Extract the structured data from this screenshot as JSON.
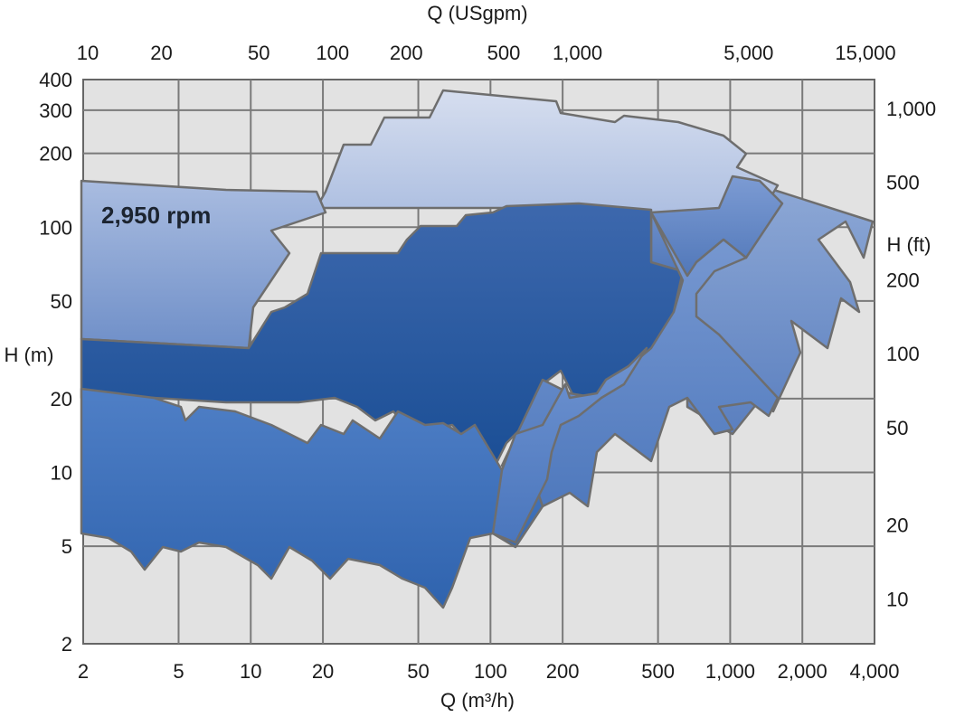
{
  "chart_data": {
    "type": "area",
    "top_axis": {
      "label": "Q (USgpm)",
      "ticks": [
        {
          "text": "10",
          "value": 10
        },
        {
          "text": "20",
          "value": 20
        },
        {
          "text": "50",
          "value": 50
        },
        {
          "text": "100",
          "value": 100
        },
        {
          "text": "200",
          "value": 200
        },
        {
          "text": "500",
          "value": 500
        },
        {
          "text": "1,000",
          "value": 1000
        },
        {
          "text": "5,000",
          "value": 5000
        },
        {
          "text": "15,000",
          "value": 15000
        }
      ]
    },
    "bottom_axis": {
      "label": "Q (m³/h)",
      "scale": "log",
      "range": [
        2,
        4000
      ],
      "ticks": [
        {
          "text": "2",
          "value": 2
        },
        {
          "text": "5",
          "value": 5
        },
        {
          "text": "10",
          "value": 10
        },
        {
          "text": "20",
          "value": 20
        },
        {
          "text": "50",
          "value": 50
        },
        {
          "text": "100",
          "value": 100
        },
        {
          "text": "200",
          "value": 200
        },
        {
          "text": "500",
          "value": 500
        },
        {
          "text": "1,000",
          "value": 1000
        },
        {
          "text": "2,000",
          "value": 2000
        },
        {
          "text": "4,000",
          "value": 4000
        }
      ]
    },
    "left_axis": {
      "label": "H (m)",
      "scale": "log",
      "range": [
        2,
        400
      ],
      "ticks": [
        {
          "text": "2",
          "value": 2
        },
        {
          "text": "5",
          "value": 5
        },
        {
          "text": "10",
          "value": 10
        },
        {
          "text": "20",
          "value": 20
        },
        {
          "text": "50",
          "value": 50
        },
        {
          "text": "100",
          "value": 100
        },
        {
          "text": "200",
          "value": 200
        },
        {
          "text": "300",
          "value": 300
        },
        {
          "text": "400",
          "value": 400
        }
      ]
    },
    "right_axis": {
      "label": "H (ft)",
      "ticks": [
        {
          "text": "1,000",
          "value": 1000
        },
        {
          "text": "500",
          "value": 500
        },
        {
          "text": "200",
          "value": 200
        },
        {
          "text": "100",
          "value": 100
        },
        {
          "text": "50",
          "value": 50
        },
        {
          "text": "20",
          "value": 20
        },
        {
          "text": "10",
          "value": 10
        }
      ]
    },
    "annotation": "2,950 rpm",
    "grid": true,
    "regions": [
      {
        "id": "region-rightmost",
        "color_top": "#8fa9d6",
        "color_bottom": "#5a7fbf",
        "points": [
          [
            840,
            205
          ],
          [
            965,
            245
          ],
          [
            955,
            285
          ],
          [
            935,
            245
          ],
          [
            905,
            265
          ],
          [
            940,
            312
          ],
          [
            950,
            345
          ],
          [
            930,
            330
          ],
          [
            915,
            385
          ],
          [
            875,
            355
          ],
          [
            885,
            390
          ],
          [
            855,
            455
          ],
          [
            842,
            440
          ],
          [
            810,
            480
          ],
          [
            760,
            450
          ],
          [
            760,
            300
          ],
          [
            820,
            195
          ]
        ]
      },
      {
        "id": "region-top-light",
        "color_top": "#d6deef",
        "color_bottom": "#9fb4dc",
        "points": [
          [
            360,
            212
          ],
          [
            380,
            160
          ],
          [
            410,
            160
          ],
          [
            425,
            130
          ],
          [
            475,
            130
          ],
          [
            490,
            100
          ],
          [
            615,
            112
          ],
          [
            620,
            125
          ],
          [
            680,
            135
          ],
          [
            690,
            128
          ],
          [
            750,
            135
          ],
          [
            800,
            150
          ],
          [
            825,
            170
          ],
          [
            815,
            185
          ],
          [
            860,
            205
          ],
          [
            845,
            230
          ],
          [
            815,
            285
          ],
          [
            700,
            285
          ],
          [
            560,
            230
          ],
          [
            350,
            230
          ]
        ]
      },
      {
        "id": "region-upper-mid",
        "color_top": "#a9bce0",
        "color_bottom": "#6f8fc8",
        "points": [
          [
            90,
            200
          ],
          [
            250,
            210
          ],
          [
            350,
            212
          ],
          [
            360,
            235
          ],
          [
            300,
            255
          ],
          [
            320,
            280
          ],
          [
            300,
            310
          ],
          [
            280,
            340
          ],
          [
            275,
            385
          ],
          [
            90,
            375
          ]
        ]
      },
      {
        "id": "region-right-step",
        "color_top": "#7c9bd3",
        "color_bottom": "#4f76b8",
        "points": [
          [
            720,
            235
          ],
          [
            795,
            230
          ],
          [
            810,
            195
          ],
          [
            840,
            200
          ],
          [
            865,
            225
          ],
          [
            825,
            285
          ],
          [
            800,
            265
          ],
          [
            770,
            290
          ],
          [
            765,
            310
          ],
          [
            745,
            305
          ],
          [
            730,
            300
          ],
          [
            720,
            290
          ]
        ]
      },
      {
        "id": "region-dark-core",
        "color_top": "#3d68ad",
        "color_bottom": "#1a4e95",
        "points": [
          [
            90,
            375
          ],
          [
            275,
            385
          ],
          [
            300,
            345
          ],
          [
            315,
            340
          ],
          [
            340,
            325
          ],
          [
            355,
            280
          ],
          [
            440,
            280
          ],
          [
            450,
            265
          ],
          [
            465,
            250
          ],
          [
            505,
            250
          ],
          [
            515,
            238
          ],
          [
            545,
            235
          ],
          [
            560,
            228
          ],
          [
            640,
            225
          ],
          [
            720,
            232
          ],
          [
            720,
            290
          ],
          [
            755,
            300
          ],
          [
            745,
            345
          ],
          [
            725,
            385
          ],
          [
            695,
            405
          ],
          [
            665,
            440
          ],
          [
            635,
            440
          ],
          [
            620,
            410
          ],
          [
            600,
            425
          ],
          [
            590,
            460
          ],
          [
            560,
            490
          ],
          [
            545,
            520
          ],
          [
            500,
            470
          ],
          [
            455,
            480
          ],
          [
            435,
            455
          ],
          [
            415,
            465
          ],
          [
            395,
            450
          ],
          [
            370,
            440
          ],
          [
            330,
            445
          ],
          [
            250,
            445
          ],
          [
            170,
            440
          ],
          [
            90,
            440
          ]
        ]
      },
      {
        "id": "region-mid-right",
        "color_top": "#7a9ad2",
        "color_bottom": "#4f79bd",
        "points": [
          [
            720,
            235
          ],
          [
            760,
            305
          ],
          [
            770,
            290
          ],
          [
            800,
            265
          ],
          [
            825,
            285
          ],
          [
            790,
            300
          ],
          [
            770,
            325
          ],
          [
            770,
            350
          ],
          [
            795,
            370
          ],
          [
            860,
            440
          ],
          [
            850,
            460
          ],
          [
            830,
            445
          ],
          [
            795,
            450
          ],
          [
            810,
            475
          ],
          [
            790,
            480
          ],
          [
            760,
            440
          ],
          [
            740,
            450
          ],
          [
            720,
            510
          ],
          [
            680,
            480
          ],
          [
            660,
            500
          ],
          [
            650,
            560
          ],
          [
            630,
            545
          ],
          [
            600,
            560
          ],
          [
            580,
            510
          ],
          [
            555,
            515
          ],
          [
            600,
            420
          ],
          [
            630,
            435
          ],
          [
            660,
            440
          ],
          [
            690,
            410
          ],
          [
            720,
            385
          ],
          [
            745,
            345
          ],
          [
            755,
            310
          ]
        ]
      },
      {
        "id": "region-bottom-blue",
        "color_top": "#4f7fc6",
        "color_bottom": "#2f63ae",
        "points": [
          [
            90,
            430
          ],
          [
            170,
            440
          ],
          [
            200,
            450
          ],
          [
            205,
            465
          ],
          [
            220,
            450
          ],
          [
            260,
            455
          ],
          [
            300,
            470
          ],
          [
            340,
            490
          ],
          [
            355,
            470
          ],
          [
            380,
            480
          ],
          [
            390,
            465
          ],
          [
            420,
            485
          ],
          [
            440,
            455
          ],
          [
            470,
            470
          ],
          [
            490,
            468
          ],
          [
            510,
            480
          ],
          [
            525,
            470
          ],
          [
            555,
            520
          ],
          [
            585,
            515
          ],
          [
            600,
            560
          ],
          [
            570,
            605
          ],
          [
            545,
            590
          ],
          [
            520,
            595
          ],
          [
            500,
            650
          ],
          [
            490,
            672
          ],
          [
            470,
            650
          ],
          [
            445,
            640
          ],
          [
            420,
            625
          ],
          [
            385,
            618
          ],
          [
            365,
            640
          ],
          [
            345,
            620
          ],
          [
            320,
            605
          ],
          [
            300,
            640
          ],
          [
            285,
            625
          ],
          [
            250,
            605
          ],
          [
            220,
            600
          ],
          [
            200,
            610
          ],
          [
            180,
            605
          ],
          [
            160,
            630
          ],
          [
            145,
            610
          ],
          [
            120,
            595
          ],
          [
            90,
            590
          ]
        ]
      },
      {
        "id": "region-bottom-right-ext",
        "color_top": "#6f93d0",
        "color_bottom": "#4a76bd",
        "points": [
          [
            555,
            520
          ],
          [
            570,
            480
          ],
          [
            600,
            470
          ],
          [
            625,
            425
          ],
          [
            630,
            440
          ],
          [
            660,
            435
          ],
          [
            670,
            420
          ],
          [
            695,
            405
          ],
          [
            715,
            385
          ],
          [
            690,
            425
          ],
          [
            665,
            440
          ],
          [
            640,
            460
          ],
          [
            620,
            470
          ],
          [
            610,
            500
          ],
          [
            605,
            530
          ],
          [
            590,
            560
          ],
          [
            570,
            600
          ],
          [
            545,
            590
          ]
        ]
      }
    ]
  }
}
